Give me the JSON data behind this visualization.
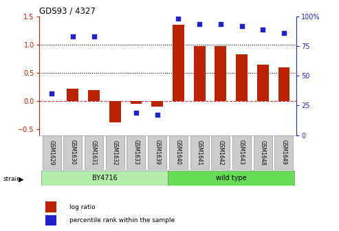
{
  "title": "GDS93 / 4327",
  "samples": [
    "GSM1629",
    "GSM1630",
    "GSM1631",
    "GSM1632",
    "GSM1633",
    "GSM1639",
    "GSM1640",
    "GSM1641",
    "GSM1642",
    "GSM1643",
    "GSM1648",
    "GSM1649"
  ],
  "log_ratio": [
    0.0,
    0.22,
    0.2,
    -0.38,
    -0.05,
    -0.1,
    1.35,
    0.97,
    0.97,
    0.83,
    0.65,
    0.6
  ],
  "percentile_pct": [
    32,
    82,
    82,
    null,
    15,
    13,
    98,
    93,
    93,
    91,
    88,
    85
  ],
  "strain_groups": [
    {
      "label": "BY4716",
      "start": 0,
      "end": 6,
      "color": "#b2eeaa"
    },
    {
      "label": "wild type",
      "start": 6,
      "end": 12,
      "color": "#66dd55"
    }
  ],
  "bar_color": "#bb2200",
  "dot_color": "#2222cc",
  "zero_line_color": "#cc3333",
  "left_ylim": [
    -0.6,
    1.5
  ],
  "right_ylim": [
    0,
    100
  ],
  "left_yticks": [
    -0.5,
    0.0,
    0.5,
    1.0,
    1.5
  ],
  "right_yticks": [
    0,
    25,
    50,
    75,
    100
  ],
  "right_tick_labels": [
    "0",
    "25",
    "50",
    "75",
    "100%"
  ],
  "hlines": [
    1.0,
    0.5
  ],
  "tick_label_bg": "#cccccc",
  "tick_label_border": "#999999"
}
